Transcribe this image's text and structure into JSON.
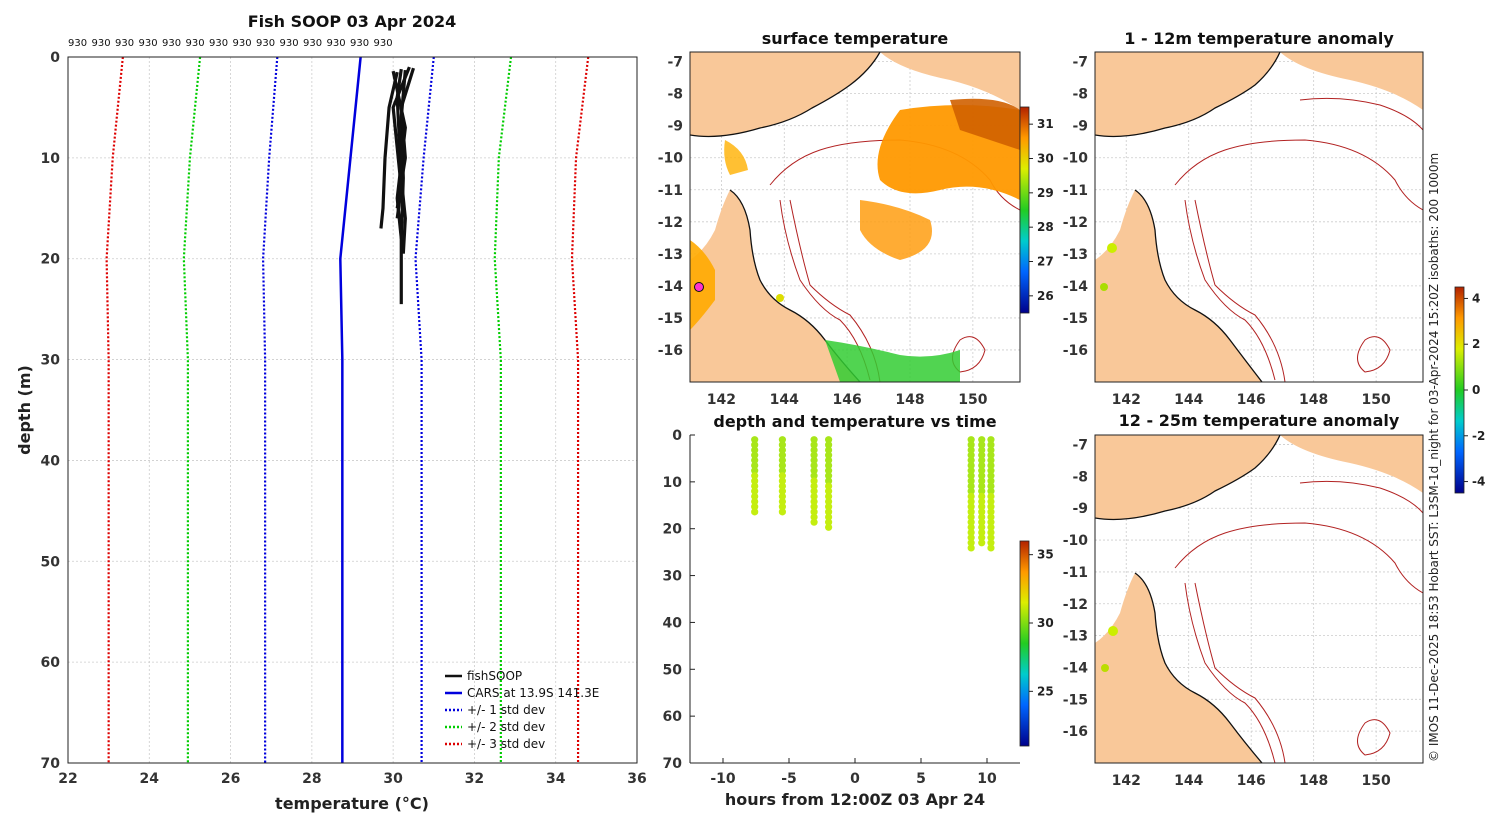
{
  "chart_data": [
    {
      "type": "line",
      "title": "Fish SOOP 03 Apr 2024",
      "xlabel": "temperature (°C)",
      "ylabel": "depth (m)",
      "xlim": [
        22,
        36
      ],
      "ylim": [
        70,
        0
      ],
      "xticks": [
        "22",
        "24",
        "26",
        "28",
        "30",
        "32",
        "34",
        "36"
      ],
      "yticks": [
        "0",
        "10",
        "20",
        "30",
        "40",
        "50",
        "60",
        "70"
      ],
      "top_labels": [
        "930",
        "930",
        "930",
        "930",
        "930",
        "930",
        "930",
        "930",
        "930",
        "930",
        "930",
        "930",
        "930",
        "930"
      ],
      "legend": [
        "fishSOOP",
        "CARS at 13.9S 141.3E",
        "+/- 1 std dev",
        "+/- 2 std dev",
        "+/- 3 std dev"
      ],
      "series": [
        {
          "name": "CARS at 13.9S 141.3E",
          "color": "#0000dd",
          "style": "solid",
          "depth": [
            0,
            10,
            20,
            30,
            70
          ],
          "temp": [
            29.2,
            28.95,
            28.7,
            28.75,
            28.75
          ]
        },
        {
          "name": "+1 std",
          "color": "#0000dd",
          "style": "dot",
          "depth": [
            0,
            10,
            20,
            30,
            70
          ],
          "temp": [
            31.0,
            30.75,
            30.55,
            30.7,
            30.7
          ]
        },
        {
          "name": "-1 std",
          "color": "#0000dd",
          "style": "dot",
          "depth": [
            0,
            10,
            20,
            30,
            70
          ],
          "temp": [
            27.15,
            26.95,
            26.8,
            26.85,
            26.85
          ]
        },
        {
          "name": "+2 std",
          "color": "#00cc00",
          "style": "dot",
          "depth": [
            0,
            10,
            20,
            30,
            70
          ],
          "temp": [
            32.9,
            32.6,
            32.5,
            32.65,
            32.65
          ]
        },
        {
          "name": "-2 std",
          "color": "#00cc00",
          "style": "dot",
          "depth": [
            0,
            10,
            20,
            30,
            70
          ],
          "temp": [
            25.25,
            25.0,
            24.85,
            24.95,
            24.95
          ]
        },
        {
          "name": "+3 std",
          "color": "#dd0000",
          "style": "dot",
          "depth": [
            0,
            10,
            20,
            30,
            70
          ],
          "temp": [
            34.8,
            34.5,
            34.4,
            34.55,
            34.55
          ]
        },
        {
          "name": "-3 std",
          "color": "#dd0000",
          "style": "dot",
          "depth": [
            0,
            10,
            20,
            30,
            70
          ],
          "temp": [
            23.35,
            23.1,
            22.95,
            23.0,
            23.0
          ]
        }
      ],
      "fishsoop_profiles": [
        {
          "depth": [
            1.5,
            5,
            10,
            15,
            17
          ],
          "temp": [
            30.1,
            29.9,
            29.8,
            29.75,
            29.7
          ]
        },
        {
          "depth": [
            1.2,
            4,
            8,
            12,
            16,
            19.5
          ],
          "temp": [
            30.2,
            30.1,
            30.15,
            30.2,
            30.3,
            30.25
          ]
        },
        {
          "depth": [
            1.3,
            6,
            12,
            18,
            24.5
          ],
          "temp": [
            30.3,
            30.2,
            30.25,
            30.2,
            30.2
          ]
        },
        {
          "depth": [
            1,
            5,
            9,
            13,
            16
          ],
          "temp": [
            30.4,
            30.0,
            30.1,
            30.2,
            30.1
          ]
        },
        {
          "depth": [
            1.4,
            7,
            14,
            18
          ],
          "temp": [
            30.0,
            30.3,
            30.1,
            30.2
          ]
        },
        {
          "depth": [
            1.1,
            5,
            10,
            15
          ],
          "temp": [
            30.5,
            30.2,
            30.3,
            30.1
          ]
        }
      ]
    },
    {
      "type": "heatmap",
      "title": "surface temperature",
      "xticks": [
        "142",
        "144",
        "146",
        "148",
        "150"
      ],
      "yticks": [
        "-7",
        "-8",
        "-9",
        "-10",
        "-11",
        "-12",
        "-13",
        "-14",
        "-15",
        "-16"
      ],
      "colorbar_ticks": [
        "31",
        "30",
        "29",
        "28",
        "27",
        "26"
      ],
      "colorbar_range": [
        25.5,
        31.5
      ]
    },
    {
      "type": "heatmap",
      "title": "1 - 12m temperature anomaly",
      "xticks": [
        "142",
        "144",
        "146",
        "148",
        "150"
      ],
      "yticks": [
        "-7",
        "-8",
        "-9",
        "-10",
        "-11",
        "-12",
        "-13",
        "-14",
        "-15",
        "-16"
      ]
    },
    {
      "type": "heatmap",
      "title": "12 - 25m temperature anomaly",
      "xticks": [
        "142",
        "144",
        "146",
        "148",
        "150"
      ],
      "yticks": [
        "-7",
        "-8",
        "-9",
        "-10",
        "-11",
        "-12",
        "-13",
        "-14",
        "-15",
        "-16"
      ],
      "colorbar_ticks": [
        "4",
        "2",
        "0",
        "-2",
        "-4"
      ],
      "colorbar_range": [
        -4.5,
        4.5
      ]
    },
    {
      "type": "scatter",
      "title": "depth and temperature vs time",
      "xlabel": "hours from 12:00Z 03 Apr 24",
      "xlim": [
        -12.5,
        12.5
      ],
      "ylim": [
        70,
        0
      ],
      "xticks": [
        "-10",
        "-5",
        "0",
        "5",
        "10"
      ],
      "yticks": [
        "0",
        "10",
        "20",
        "30",
        "40",
        "50",
        "60",
        "70"
      ],
      "colorbar_ticks": [
        "35",
        "30",
        "25"
      ],
      "colorbar_range": [
        21,
        36
      ],
      "casts": [
        {
          "hour": -7.6,
          "maxdepth": 17
        },
        {
          "hour": -5.5,
          "maxdepth": 16.5
        },
        {
          "hour": -3.1,
          "maxdepth": 19.5
        },
        {
          "hour": -2.0,
          "maxdepth": 20
        },
        {
          "hour": 8.8,
          "maxdepth": 24.5
        },
        {
          "hour": 9.6,
          "maxdepth": 24
        },
        {
          "hour": 10.3,
          "maxdepth": 24.5
        }
      ]
    }
  ],
  "credit": "© IMOS 11-Dec-2025 18:53 Hobart SST: L3SM-1d_night for 03-Apr-2024 15:20Z isobaths: 200  1000m"
}
